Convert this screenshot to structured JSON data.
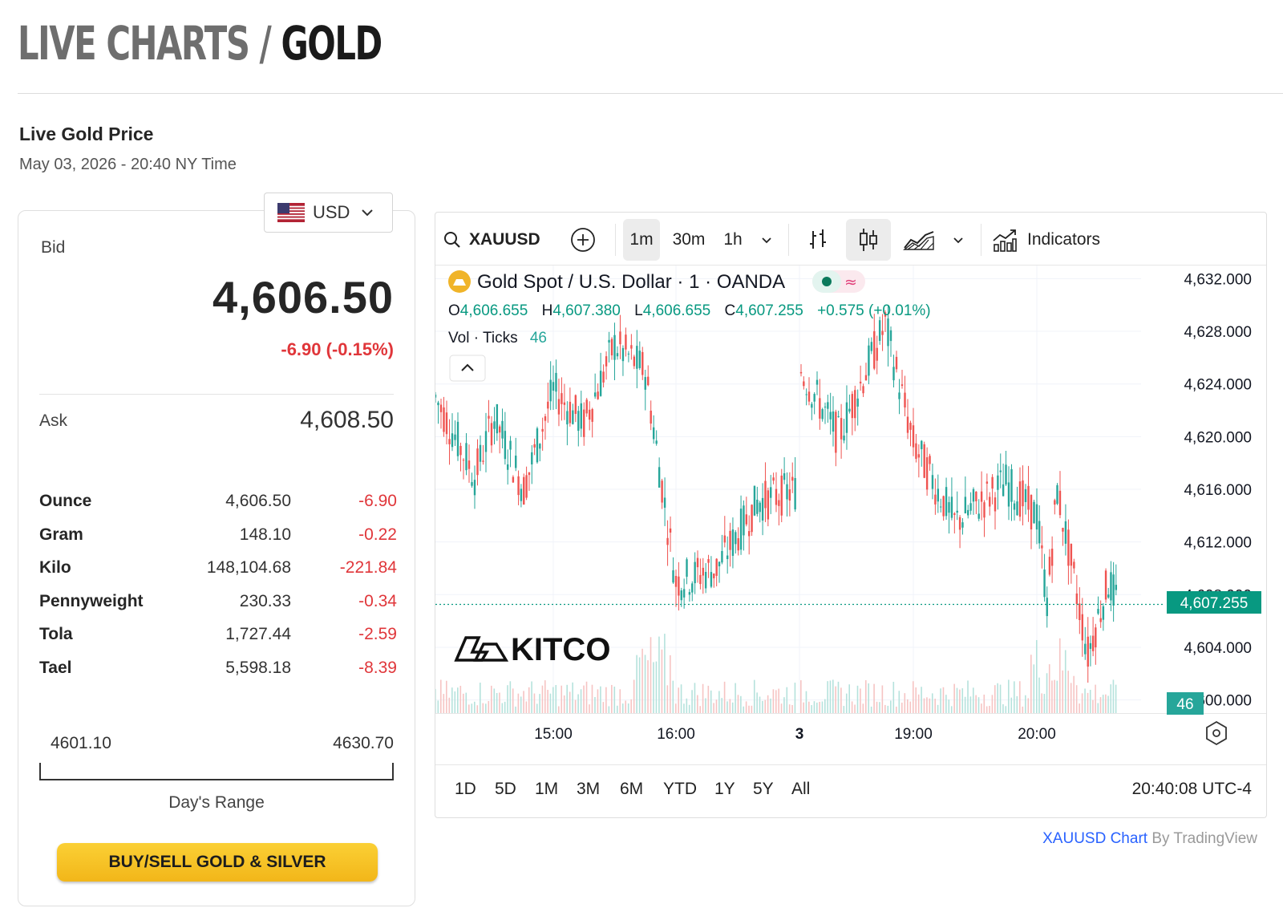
{
  "header": {
    "part1": "LIVE CHARTS /",
    "part2": "GOLD"
  },
  "price_panel": {
    "title": "Live Gold Price",
    "timestamp": "May 03, 2026 - 20:40 NY Time",
    "currency": "USD",
    "bid_label": "Bid",
    "bid_value": "4,606.50",
    "bid_change": "-6.90 (-0.15%)",
    "ask_label": "Ask",
    "ask_value": "4,608.50",
    "units": [
      {
        "name": "Ounce",
        "price": "4,606.50",
        "change": "-6.90"
      },
      {
        "name": "Gram",
        "price": "148.10",
        "change": "-0.22"
      },
      {
        "name": "Kilo",
        "price": "148,104.68",
        "change": "-221.84"
      },
      {
        "name": "Pennyweight",
        "price": "230.33",
        "change": "-0.34"
      },
      {
        "name": "Tola",
        "price": "1,727.44",
        "change": "-2.59"
      },
      {
        "name": "Tael",
        "price": "5,598.18",
        "change": "-8.39"
      }
    ],
    "day_low": "4601.10",
    "day_high": "4630.70",
    "range_caption": "Day's Range",
    "buy_button": "BUY/SELL GOLD & SILVER"
  },
  "chart_widget": {
    "symbol": "XAUUSD",
    "intervals": [
      "1m",
      "30m",
      "1h"
    ],
    "active_interval": "1m",
    "indicators_label": "Indicators",
    "legend_title": "Gold Spot / U.S. Dollar · 1 · OANDA",
    "ohlc": {
      "o_label": "O",
      "o": "4,606.655",
      "h_label": "H",
      "h": "4,607.380",
      "l_label": "L",
      "l": "4,606.655",
      "c_label": "C",
      "c": "4,607.255",
      "change": "+0.575 (+0.01%)"
    },
    "vol_label": "Vol · Ticks",
    "vol_value": "46",
    "watermark": "KITCO",
    "last_price_tag": "4,607.255",
    "volume_tag": "46",
    "ranges": [
      "1D",
      "5D",
      "1M",
      "3M",
      "6M",
      "YTD",
      "1Y",
      "5Y",
      "All"
    ],
    "clock": "20:40:08 UTC-4",
    "attribution_link": "XAUUSD Chart",
    "attribution_rest": " By TradingView",
    "colors": {
      "up": "#26a69a",
      "down": "#ef5350",
      "accent": "#2962ff",
      "button": "#f5bd1f"
    }
  },
  "chart_data": {
    "type": "candlestick",
    "title": "Gold Spot / U.S. Dollar · 1 · OANDA",
    "x_ticks": [
      "15:00",
      "16:00",
      "3",
      "19:00",
      "20:00"
    ],
    "y_ticks": [
      "4,632.000",
      "4,628.000",
      "4,624.000",
      "4,620.000",
      "4,616.000",
      "4,612.000",
      "4,608.000",
      "4,604.000",
      "4,600.000"
    ],
    "ylim": [
      4599.0,
      4633.0
    ],
    "grid": true,
    "last_price": 4607.255,
    "close_path": [
      {
        "t": "14:00",
        "price": 4623.0
      },
      {
        "t": "14:20",
        "price": 4617.0
      },
      {
        "t": "14:30",
        "price": 4621.5
      },
      {
        "t": "14:45",
        "price": 4616.0
      },
      {
        "t": "15:00",
        "price": 4623.5
      },
      {
        "t": "15:15",
        "price": 4621.0
      },
      {
        "t": "15:30",
        "price": 4627.0
      },
      {
        "t": "15:45",
        "price": 4625.0
      },
      {
        "t": "16:00",
        "price": 4609.0
      },
      {
        "t": "16:15",
        "price": 4610.0
      },
      {
        "t": "16:30",
        "price": 4615.0
      },
      {
        "t": "16:45",
        "price": 4616.0
      },
      {
        "t": "18:00",
        "price": 4625.0
      },
      {
        "t": "18:20",
        "price": 4620.0
      },
      {
        "t": "18:45",
        "price": 4628.5
      },
      {
        "t": "19:00",
        "price": 4619.5
      },
      {
        "t": "19:20",
        "price": 4613.5
      },
      {
        "t": "19:45",
        "price": 4616.5
      },
      {
        "t": "20:00",
        "price": 4614.0
      },
      {
        "t": "20:05",
        "price": 4607.5
      },
      {
        "t": "20:10",
        "price": 4616.0
      },
      {
        "t": "20:25",
        "price": 4603.5
      },
      {
        "t": "20:35",
        "price": 4609.0
      },
      {
        "t": "20:40",
        "price": 4607.255
      }
    ]
  }
}
